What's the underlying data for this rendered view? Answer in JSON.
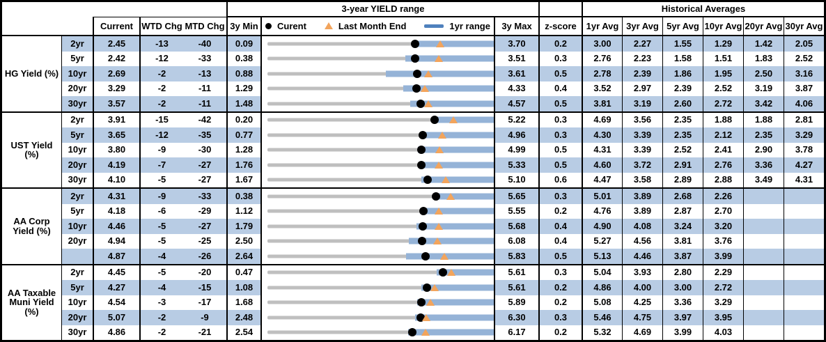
{
  "chart_data": {
    "type": "table",
    "title": "3-year YIELD range",
    "header": {
      "yield_range_title": "3-year YIELD range",
      "historical_title": "Historical Averages",
      "current": "Current",
      "wtd": "WTD Chg",
      "mtd": "MTD Chg",
      "min": "3y Min",
      "max": "3y Max",
      "z": "z-score",
      "avg_cols": [
        "1yr Avg",
        "3yr Avg",
        "5yr Avg",
        "10yr Avg",
        "20yr Avg",
        "30yr Avg"
      ]
    },
    "legend": {
      "current": "Curent",
      "last_month_end": "Last Month End",
      "one_yr_range": "1yr range"
    },
    "embedded_chart_note": "per-row range chart: gray track spans 3y Min to 3y Max, blue bar is 1yr range, black dot is Current, orange triangle is Last Month End",
    "sections": [
      {
        "label": "HG Yield (%)",
        "rows": [
          {
            "tenor": "2yr",
            "current": "2.45",
            "wtd": "-13",
            "mtd": "-40",
            "min": "0.09",
            "max": "3.70",
            "z": "0.2",
            "avgs": [
              "3.00",
              "2.27",
              "1.55",
              "1.29",
              "1.42",
              "2.05"
            ],
            "bar": {
              "low": 2.42,
              "high": 3.7,
              "dot": 2.45,
              "tri": 2.85
            }
          },
          {
            "tenor": "5yr",
            "current": "2.42",
            "wtd": "-12",
            "mtd": "-33",
            "min": "0.38",
            "max": "3.51",
            "z": "0.3",
            "avgs": [
              "2.76",
              "2.23",
              "1.58",
              "1.51",
              "1.83",
              "2.52"
            ],
            "bar": {
              "low": 2.29,
              "high": 3.51,
              "dot": 2.42,
              "tri": 2.75
            }
          },
          {
            "tenor": "10yr",
            "current": "2.69",
            "wtd": "-2",
            "mtd": "-13",
            "min": "0.88",
            "max": "3.61",
            "z": "0.5",
            "avgs": [
              "2.78",
              "2.39",
              "1.86",
              "1.95",
              "2.50",
              "3.16"
            ],
            "bar": {
              "low": 2.31,
              "high": 3.61,
              "dot": 2.69,
              "tri": 2.82
            }
          },
          {
            "tenor": "20yr",
            "current": "3.29",
            "wtd": "-2",
            "mtd": "-11",
            "min": "1.29",
            "max": "4.33",
            "z": "0.4",
            "avgs": [
              "3.52",
              "2.97",
              "2.39",
              "2.52",
              "3.19",
              "3.87"
            ],
            "bar": {
              "low": 3.11,
              "high": 4.33,
              "dot": 3.29,
              "tri": 3.4
            }
          },
          {
            "tenor": "30yr",
            "current": "3.57",
            "wtd": "-2",
            "mtd": "-11",
            "min": "1.48",
            "max": "4.57",
            "z": "0.5",
            "avgs": [
              "3.81",
              "3.19",
              "2.60",
              "2.72",
              "3.42",
              "4.06"
            ],
            "bar": {
              "low": 3.43,
              "high": 4.57,
              "dot": 3.57,
              "tri": 3.68
            }
          }
        ]
      },
      {
        "label": "UST Yield (%)",
        "rows": [
          {
            "tenor": "2yr",
            "current": "3.91",
            "wtd": "-15",
            "mtd": "-42",
            "min": "0.20",
            "max": "5.22",
            "z": "0.3",
            "avgs": [
              "4.69",
              "3.56",
              "2.35",
              "1.88",
              "1.88",
              "2.81"
            ],
            "bar": {
              "low": 3.87,
              "high": 5.22,
              "dot": 3.91,
              "tri": 4.33
            }
          },
          {
            "tenor": "5yr",
            "current": "3.65",
            "wtd": "-12",
            "mtd": "-35",
            "min": "0.77",
            "max": "4.96",
            "z": "0.3",
            "avgs": [
              "4.30",
              "3.39",
              "2.35",
              "2.12",
              "2.35",
              "3.29"
            ],
            "bar": {
              "low": 3.6,
              "high": 4.96,
              "dot": 3.65,
              "tri": 4.0
            }
          },
          {
            "tenor": "10yr",
            "current": "3.80",
            "wtd": "-9",
            "mtd": "-30",
            "min": "1.28",
            "max": "4.99",
            "z": "0.5",
            "avgs": [
              "4.31",
              "3.39",
              "2.52",
              "2.41",
              "2.90",
              "3.78"
            ],
            "bar": {
              "low": 3.74,
              "high": 4.99,
              "dot": 3.8,
              "tri": 4.1
            }
          },
          {
            "tenor": "20yr",
            "current": "4.19",
            "wtd": "-7",
            "mtd": "-27",
            "min": "1.76",
            "max": "5.33",
            "z": "0.5",
            "avgs": [
              "4.60",
              "3.72",
              "2.91",
              "2.76",
              "3.36",
              "4.27"
            ],
            "bar": {
              "low": 4.14,
              "high": 5.33,
              "dot": 4.19,
              "tri": 4.46
            }
          },
          {
            "tenor": "30yr",
            "current": "4.10",
            "wtd": "-5",
            "mtd": "-27",
            "min": "1.67",
            "max": "5.10",
            "z": "0.6",
            "avgs": [
              "4.47",
              "3.58",
              "2.89",
              "2.88",
              "3.49",
              "4.31"
            ],
            "bar": {
              "low": 4.0,
              "high": 5.1,
              "dot": 4.1,
              "tri": 4.37
            }
          }
        ]
      },
      {
        "label": "AA Corp Yield (%)",
        "rows": [
          {
            "tenor": "2yr",
            "current": "4.31",
            "wtd": "-9",
            "mtd": "-33",
            "min": "0.38",
            "max": "5.65",
            "z": "0.3",
            "avgs": [
              "5.01",
              "3.89",
              "2.68",
              "2.26",
              "",
              ""
            ],
            "bar": {
              "low": 4.27,
              "high": 5.65,
              "dot": 4.31,
              "tri": 4.64
            }
          },
          {
            "tenor": "5yr",
            "current": "4.18",
            "wtd": "-6",
            "mtd": "-29",
            "min": "1.12",
            "max": "5.55",
            "z": "0.2",
            "avgs": [
              "4.76",
              "3.89",
              "2.87",
              "2.70",
              "",
              ""
            ],
            "bar": {
              "low": 4.13,
              "high": 5.55,
              "dot": 4.18,
              "tri": 4.47
            }
          },
          {
            "tenor": "10yr",
            "current": "4.46",
            "wtd": "-5",
            "mtd": "-27",
            "min": "1.79",
            "max": "5.68",
            "z": "0.4",
            "avgs": [
              "4.90",
              "4.08",
              "3.24",
              "3.20",
              "",
              ""
            ],
            "bar": {
              "low": 4.35,
              "high": 5.68,
              "dot": 4.46,
              "tri": 4.73
            }
          },
          {
            "tenor": "20yr",
            "current": "4.94",
            "wtd": "-5",
            "mtd": "-25",
            "min": "2.50",
            "max": "6.08",
            "z": "0.4",
            "avgs": [
              "5.27",
              "4.56",
              "3.81",
              "3.76",
              "",
              ""
            ],
            "bar": {
              "low": 4.74,
              "high": 6.08,
              "dot": 4.94,
              "tri": 5.19
            }
          },
          {
            "tenor": "",
            "current": "4.87",
            "wtd": "-4",
            "mtd": "-26",
            "min": "2.64",
            "max": "5.83",
            "z": "0.5",
            "avgs": [
              "5.13",
              "4.46",
              "3.87",
              "3.99",
              "",
              ""
            ],
            "bar": {
              "low": 4.59,
              "high": 5.83,
              "dot": 4.87,
              "tri": 5.13
            }
          }
        ]
      },
      {
        "label": "AA Taxable Muni Yield (%)",
        "rows": [
          {
            "tenor": "2yr",
            "current": "4.45",
            "wtd": "-5",
            "mtd": "-20",
            "min": "0.47",
            "max": "5.61",
            "z": "0.3",
            "avgs": [
              "5.04",
              "3.93",
              "2.80",
              "2.29",
              "",
              ""
            ],
            "bar": {
              "low": 4.31,
              "high": 5.61,
              "dot": 4.45,
              "tri": 4.65
            }
          },
          {
            "tenor": "5yr",
            "current": "4.27",
            "wtd": "-4",
            "mtd": "-15",
            "min": "1.08",
            "max": "5.61",
            "z": "0.2",
            "avgs": [
              "4.86",
              "4.00",
              "3.00",
              "2.72",
              "",
              ""
            ],
            "bar": {
              "low": 4.16,
              "high": 5.61,
              "dot": 4.27,
              "tri": 4.42
            }
          },
          {
            "tenor": "10yr",
            "current": "4.54",
            "wtd": "-3",
            "mtd": "-17",
            "min": "1.68",
            "max": "5.89",
            "z": "0.2",
            "avgs": [
              "5.08",
              "4.25",
              "3.36",
              "3.29",
              "",
              ""
            ],
            "bar": {
              "low": 4.46,
              "high": 5.89,
              "dot": 4.54,
              "tri": 4.71
            }
          },
          {
            "tenor": "20yr",
            "current": "5.07",
            "wtd": "-2",
            "mtd": "-9",
            "min": "2.48",
            "max": "6.30",
            "z": "0.3",
            "avgs": [
              "5.46",
              "4.75",
              "3.97",
              "3.95",
              "",
              ""
            ],
            "bar": {
              "low": 4.97,
              "high": 6.3,
              "dot": 5.07,
              "tri": 5.16
            }
          },
          {
            "tenor": "30yr",
            "current": "4.86",
            "wtd": "-2",
            "mtd": "-21",
            "min": "2.54",
            "max": "6.17",
            "z": "0.2",
            "avgs": [
              "5.32",
              "4.69",
              "3.99",
              "4.03",
              "",
              ""
            ],
            "bar": {
              "low": 4.8,
              "high": 6.17,
              "dot": 4.86,
              "tri": 5.07
            }
          }
        ]
      }
    ],
    "colors": {
      "row_shade": "#B8CCE4",
      "range_bar": "#95B3D7",
      "track": "#BFBFBF",
      "triangle": "#F2A45C",
      "dot": "#000000",
      "legend_line_swatch": "#4F81BD",
      "border": "#000000"
    }
  }
}
